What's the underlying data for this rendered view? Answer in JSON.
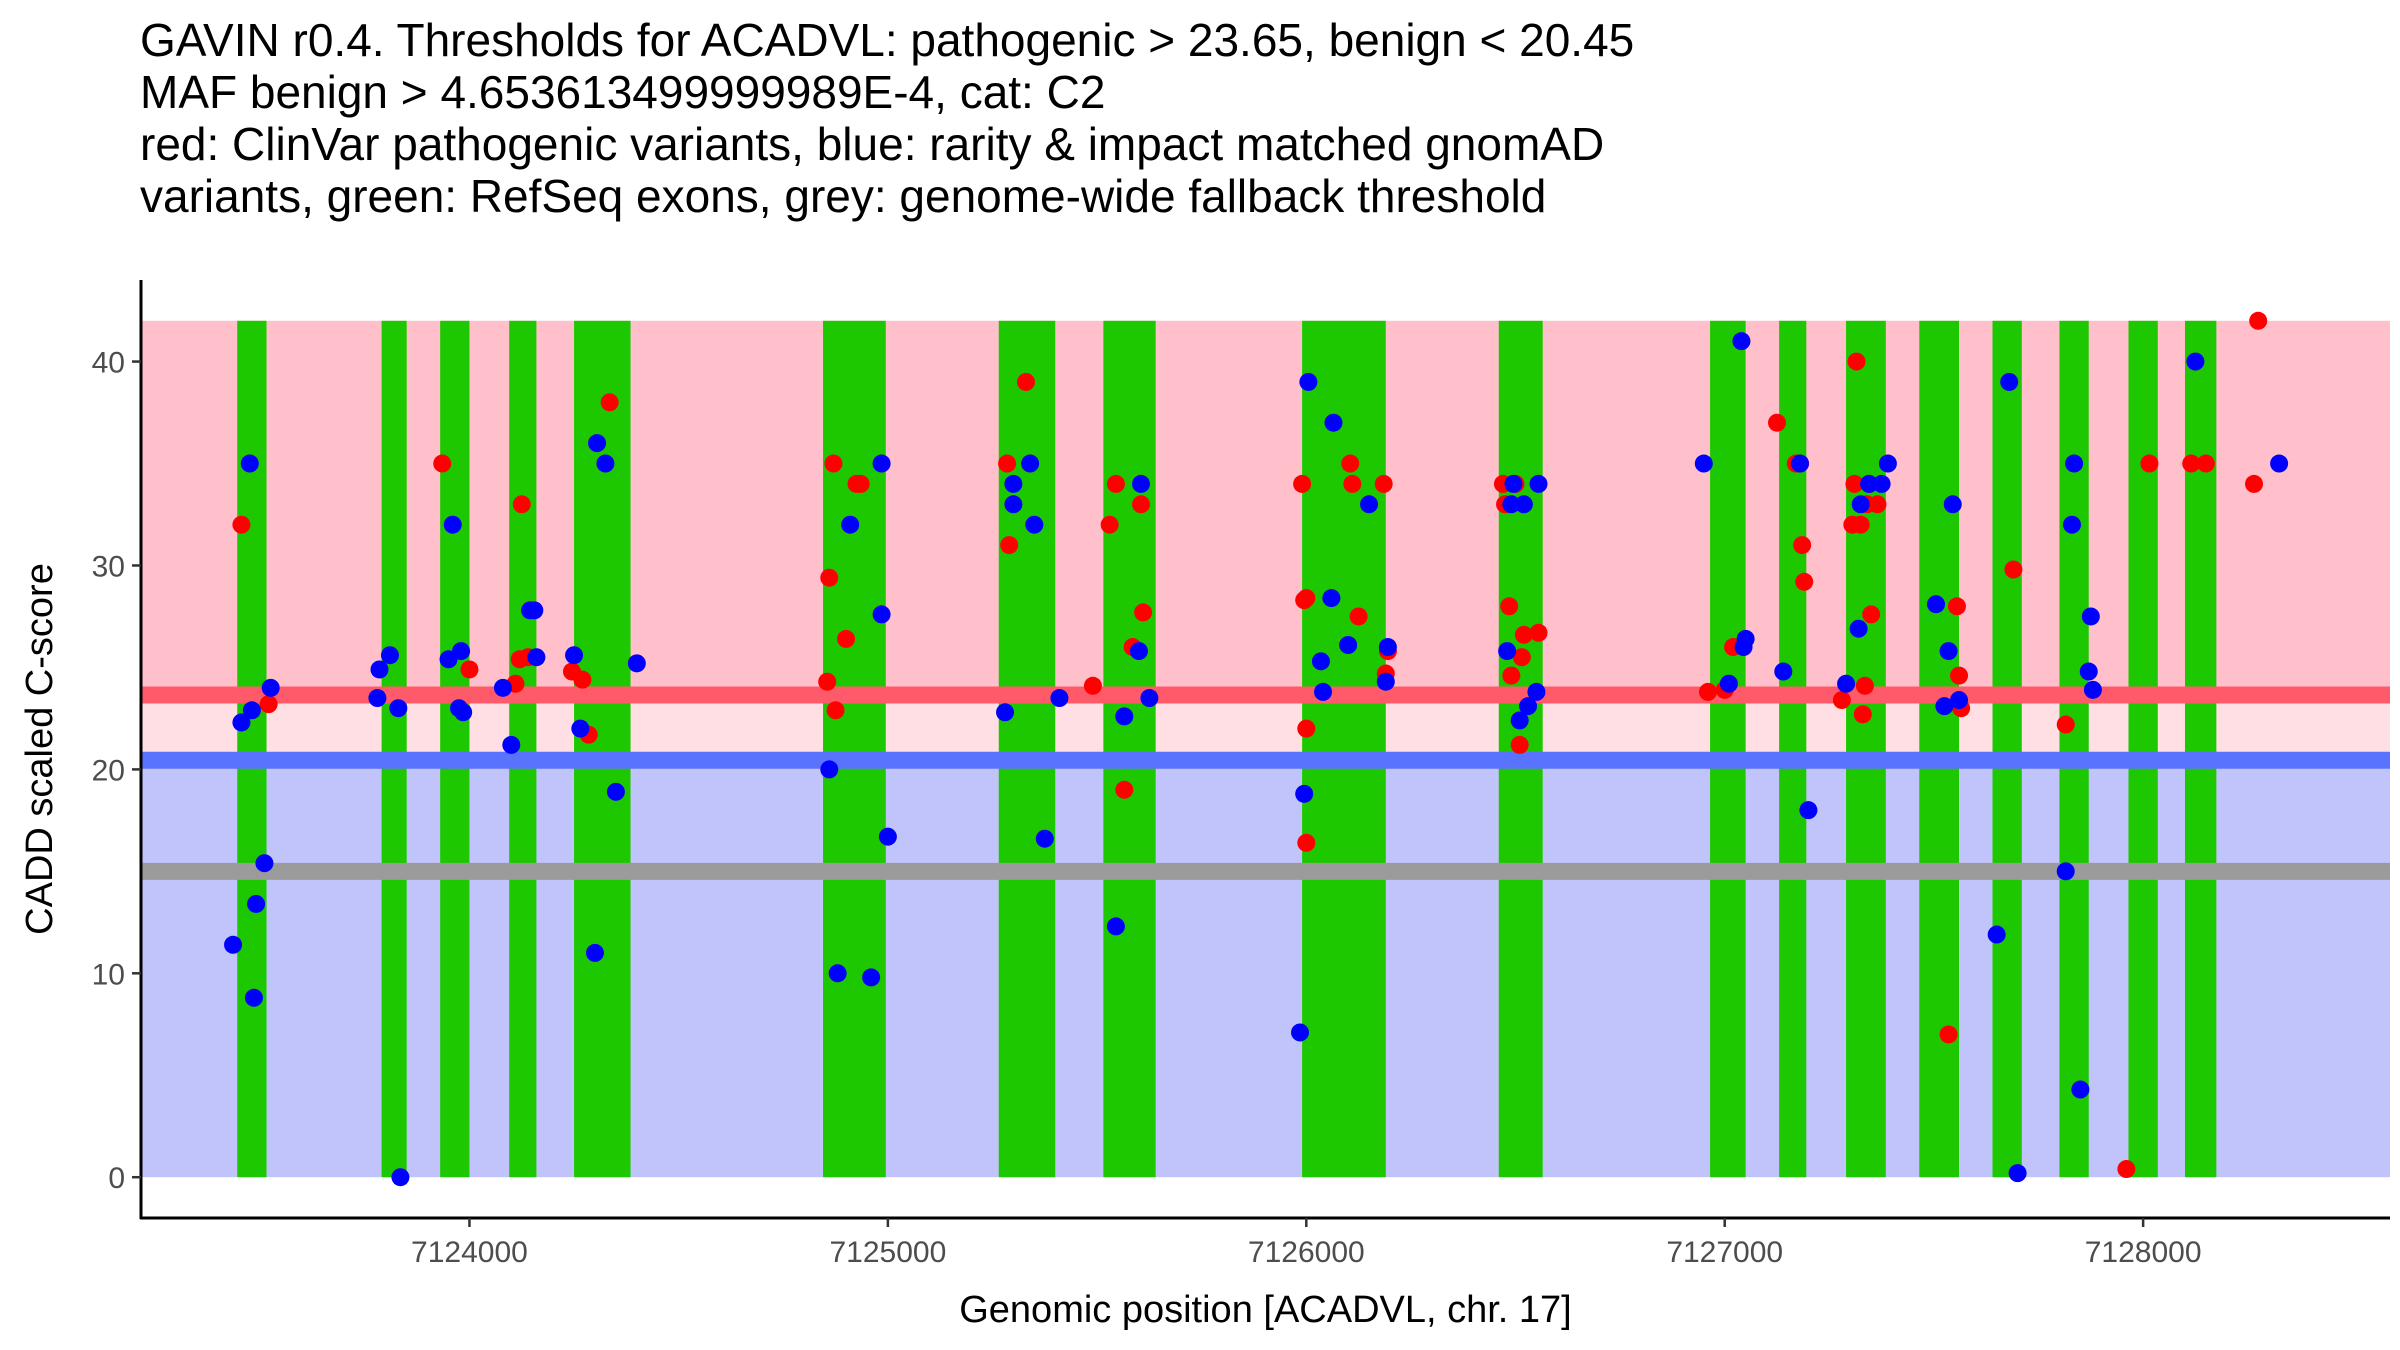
{
  "title_lines": [
    "GAVIN r0.4. Thresholds for ACADVL: pathogenic > 23.65, benign < 20.45",
    "MAF benign > 4.653613499999989E-4, cat: C2",
    "red: ClinVar pathogenic variants, blue: rarity & impact matched gnomAD",
    "variants, green: RefSeq exons, grey: genome-wide fallback threshold"
  ],
  "colors": {
    "pathogenic_bg": "#ffc0cb",
    "band_bg": "#ffdfe4",
    "benign_bg": "#c0c4fb",
    "pathogenic_line": "#ff5a6a",
    "benign_line": "#5a73ff",
    "fallback_line": "#9b9b9b",
    "exon": "#1ec800",
    "clinvar_point": "#ff0000",
    "gnomad_point": "#0000ff"
  },
  "chart_data": {
    "type": "scatter",
    "xlabel": "Genomic position [ACADVL, chr. 17]",
    "ylabel": "CADD scaled C-score",
    "xlim": [
      7123215,
      7128590
    ],
    "ylim": [
      -2,
      44
    ],
    "x_ticks": [
      7124000,
      7125000,
      7126000,
      7127000,
      7128000
    ],
    "x_tick_labels": [
      "7124000",
      "7125000",
      "7126000",
      "7127000",
      "7128000"
    ],
    "y_ticks": [
      0,
      10,
      20,
      30,
      40
    ],
    "y_tick_labels": [
      "0",
      "10",
      "20",
      "30",
      "40"
    ],
    "thresholds": {
      "pathogenic": 23.65,
      "benign": 20.45,
      "fallback": 15,
      "band_top": 42
    },
    "exons": [
      [
        7123445,
        7123515
      ],
      [
        7123790,
        7123850
      ],
      [
        7123930,
        7124000
      ],
      [
        7124095,
        7124160
      ],
      [
        7124250,
        7124385
      ],
      [
        7124845,
        7124995
      ],
      [
        7125265,
        7125400
      ],
      [
        7125515,
        7125640
      ],
      [
        7125990,
        7126190
      ],
      [
        7126460,
        7126565
      ],
      [
        7126965,
        7127050
      ],
      [
        7127130,
        7127195
      ],
      [
        7127290,
        7127385
      ],
      [
        7127465,
        7127560
      ],
      [
        7127640,
        7127710
      ],
      [
        7127800,
        7127870
      ],
      [
        7127965,
        7128035
      ],
      [
        7128100,
        7128175
      ]
    ],
    "series": [
      {
        "name": "ClinVar pathogenic",
        "points": [
          [
            7123455,
            32
          ],
          [
            7123520,
            23.2
          ],
          [
            7123935,
            35
          ],
          [
            7124000,
            24.9
          ],
          [
            7124110,
            24.2
          ],
          [
            7124120,
            25.4
          ],
          [
            7124125,
            33
          ],
          [
            7124140,
            25.5
          ],
          [
            7124245,
            24.8
          ],
          [
            7124270,
            24.4
          ],
          [
            7124285,
            21.7
          ],
          [
            7124335,
            38
          ],
          [
            7124855,
            24.3
          ],
          [
            7124860,
            29.4
          ],
          [
            7124870,
            35
          ],
          [
            7124875,
            22.9
          ],
          [
            7124900,
            26.4
          ],
          [
            7124925,
            34
          ],
          [
            7124935,
            34
          ],
          [
            7125285,
            35
          ],
          [
            7125290,
            31
          ],
          [
            7125330,
            39
          ],
          [
            7125490,
            24.1
          ],
          [
            7125530,
            32
          ],
          [
            7125545,
            34
          ],
          [
            7125565,
            19
          ],
          [
            7125585,
            26
          ],
          [
            7125605,
            33
          ],
          [
            7125610,
            27.7
          ],
          [
            7125990,
            34
          ],
          [
            7125995,
            28.3
          ],
          [
            7126000,
            28.4
          ],
          [
            7126000,
            22
          ],
          [
            7126000,
            16.4
          ],
          [
            7126105,
            35
          ],
          [
            7126110,
            34
          ],
          [
            7126125,
            27.5
          ],
          [
            7126185,
            34
          ],
          [
            7126190,
            24.7
          ],
          [
            7126195,
            25.8
          ],
          [
            7126470,
            34
          ],
          [
            7126475,
            33
          ],
          [
            7126485,
            28
          ],
          [
            7126490,
            24.6
          ],
          [
            7126500,
            34
          ],
          [
            7126510,
            21.2
          ],
          [
            7126515,
            25.5
          ],
          [
            7126520,
            26.6
          ],
          [
            7126555,
            26.7
          ],
          [
            7126960,
            23.8
          ],
          [
            7127000,
            23.9
          ],
          [
            7127020,
            26
          ],
          [
            7127125,
            37
          ],
          [
            7127170,
            35
          ],
          [
            7127180,
            35
          ],
          [
            7127185,
            31
          ],
          [
            7127190,
            29.2
          ],
          [
            7127280,
            23.4
          ],
          [
            7127305,
            32
          ],
          [
            7127310,
            34
          ],
          [
            7127315,
            40
          ],
          [
            7127325,
            32
          ],
          [
            7127330,
            22.7
          ],
          [
            7127335,
            24.1
          ],
          [
            7127340,
            33
          ],
          [
            7127345,
            34
          ],
          [
            7127350,
            27.6
          ],
          [
            7127365,
            33
          ],
          [
            7127535,
            7
          ],
          [
            7127555,
            28
          ],
          [
            7127560,
            24.6
          ],
          [
            7127565,
            23
          ],
          [
            7127690,
            29.8
          ],
          [
            7127815,
            22.2
          ],
          [
            7127960,
            0.4
          ],
          [
            7128015,
            35
          ],
          [
            7128115,
            35
          ],
          [
            7128150,
            35
          ],
          [
            7128265,
            34
          ],
          [
            7128275,
            42
          ]
        ]
      },
      {
        "name": "gnomAD matched",
        "points": [
          [
            7123435,
            11.4
          ],
          [
            7123455,
            22.3
          ],
          [
            7123475,
            35
          ],
          [
            7123480,
            22.9
          ],
          [
            7123485,
            8.8
          ],
          [
            7123490,
            13.4
          ],
          [
            7123510,
            15.4
          ],
          [
            7123525,
            24
          ],
          [
            7123780,
            23.5
          ],
          [
            7123785,
            24.9
          ],
          [
            7123810,
            25.6
          ],
          [
            7123830,
            23
          ],
          [
            7123835,
            0
          ],
          [
            7123950,
            25.4
          ],
          [
            7123960,
            32
          ],
          [
            7123975,
            23
          ],
          [
            7123980,
            25.8
          ],
          [
            7123985,
            22.8
          ],
          [
            7124080,
            24
          ],
          [
            7124100,
            21.2
          ],
          [
            7124145,
            27.8
          ],
          [
            7124155,
            27.8
          ],
          [
            7124160,
            25.5
          ],
          [
            7124250,
            25.6
          ],
          [
            7124265,
            22
          ],
          [
            7124300,
            11
          ],
          [
            7124305,
            36
          ],
          [
            7124325,
            35
          ],
          [
            7124350,
            18.9
          ],
          [
            7124400,
            25.2
          ],
          [
            7124860,
            20
          ],
          [
            7124880,
            10
          ],
          [
            7124910,
            32
          ],
          [
            7124960,
            9.8
          ],
          [
            7124985,
            35
          ],
          [
            7124985,
            27.6
          ],
          [
            7125000,
            16.7
          ],
          [
            7125280,
            22.8
          ],
          [
            7125300,
            34
          ],
          [
            7125300,
            33
          ],
          [
            7125340,
            35
          ],
          [
            7125350,
            32
          ],
          [
            7125375,
            16.6
          ],
          [
            7125410,
            23.5
          ],
          [
            7125545,
            12.3
          ],
          [
            7125565,
            22.6
          ],
          [
            7125600,
            25.8
          ],
          [
            7125605,
            34
          ],
          [
            7125625,
            23.5
          ],
          [
            7125985,
            7.1
          ],
          [
            7125995,
            18.8
          ],
          [
            7126005,
            39
          ],
          [
            7126035,
            25.3
          ],
          [
            7126040,
            23.8
          ],
          [
            7126065,
            37
          ],
          [
            7126060,
            28.4
          ],
          [
            7126100,
            26.1
          ],
          [
            7126150,
            33
          ],
          [
            7126190,
            24.3
          ],
          [
            7126195,
            26
          ],
          [
            7126480,
            25.8
          ],
          [
            7126490,
            33
          ],
          [
            7126495,
            34
          ],
          [
            7126510,
            22.4
          ],
          [
            7126520,
            33
          ],
          [
            7126530,
            23.1
          ],
          [
            7126550,
            23.8
          ],
          [
            7126555,
            34
          ],
          [
            7126950,
            35
          ],
          [
            7127010,
            24.2
          ],
          [
            7127040,
            41
          ],
          [
            7127045,
            26
          ],
          [
            7127050,
            26.4
          ],
          [
            7127140,
            24.8
          ],
          [
            7127180,
            35
          ],
          [
            7127200,
            18
          ],
          [
            7127290,
            24.2
          ],
          [
            7127320,
            26.9
          ],
          [
            7127325,
            33
          ],
          [
            7127345,
            34
          ],
          [
            7127375,
            34
          ],
          [
            7127390,
            35
          ],
          [
            7127505,
            28.1
          ],
          [
            7127525,
            23.1
          ],
          [
            7127535,
            25.8
          ],
          [
            7127545,
            33
          ],
          [
            7127560,
            23.4
          ],
          [
            7127650,
            11.9
          ],
          [
            7127680,
            39
          ],
          [
            7127700,
            0.2
          ],
          [
            7127815,
            15
          ],
          [
            7127830,
            32
          ],
          [
            7127835,
            35
          ],
          [
            7127850,
            4.3
          ],
          [
            7127870,
            24.8
          ],
          [
            7127875,
            27.5
          ],
          [
            7127880,
            23.9
          ],
          [
            7128125,
            40
          ],
          [
            7128325,
            35
          ]
        ]
      }
    ]
  }
}
